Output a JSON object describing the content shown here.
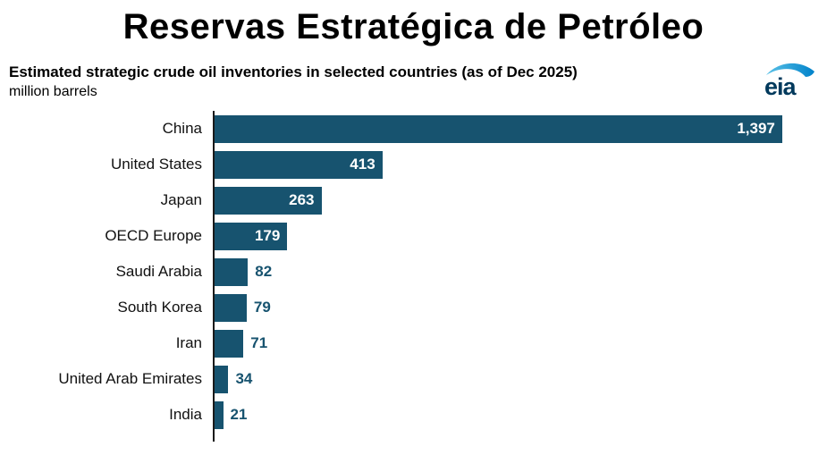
{
  "page_title": "Reservas Estratégica de Petróleo",
  "chart": {
    "subtitle": "Estimated strategic crude oil inventories in selected countries (as of Dec 2025)",
    "unit_label": "million barrels"
  },
  "logo": {
    "text": "eia"
  },
  "colors": {
    "bar": "#17536f",
    "value_inside": "#ffffff",
    "value_outside": "#17536f",
    "axis": "#1a1a1a",
    "logo_text": "#00395c",
    "logo_swoosh_light": "#5bc2e7",
    "logo_swoosh_dark": "#0082ca"
  },
  "chart_data": {
    "type": "bar",
    "orientation": "horizontal",
    "title": "Estimated strategic crude oil inventories in selected countries (as of Dec 2025)",
    "xlabel": "million barrels",
    "categories": [
      "China",
      "United States",
      "Japan",
      "OECD Europe",
      "Saudi Arabia",
      "South Korea",
      "Iran",
      "United Arab Emirates",
      "India"
    ],
    "values": [
      1397,
      413,
      263,
      179,
      82,
      79,
      71,
      34,
      21
    ],
    "value_labels": [
      "1,397",
      "413",
      "263",
      "179",
      "82",
      "79",
      "71",
      "34",
      "21"
    ],
    "xlim": [
      0,
      1500
    ],
    "grid": false,
    "legend": false
  }
}
